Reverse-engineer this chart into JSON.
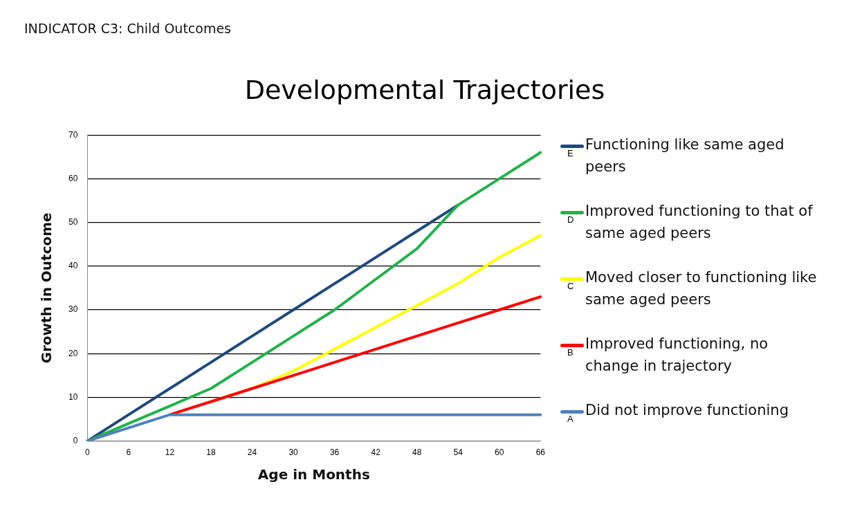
{
  "chart_data": {
    "type": "line",
    "title": "Developmental Trajectories",
    "subtitle": "INDICATOR C3: Child Outcomes",
    "xlabel": "Age in Months",
    "ylabel": "Growth in Outcome",
    "categories": [
      "0",
      "6",
      "12",
      "18",
      "24",
      "30",
      "36",
      "42",
      "48",
      "54",
      "60",
      "66"
    ],
    "series": [
      {
        "name": "Functioning like same aged peers",
        "color": "#1f497d",
        "values": [
          0,
          6,
          12,
          18,
          24,
          30,
          36,
          42,
          48,
          54,
          null,
          null
        ]
      },
      {
        "name": "Improved functioning to that of same aged peers",
        "color": "#22b14c",
        "values": [
          0,
          4,
          8,
          12,
          18,
          24,
          30,
          37,
          44,
          54,
          60,
          66
        ]
      },
      {
        "name": "Moved closer to functioning like same aged peers",
        "color": "#ffff00",
        "values": [
          null,
          null,
          null,
          9,
          12,
          16,
          21,
          26,
          31,
          36,
          42,
          47
        ]
      },
      {
        "name": "Improved functioning, no change in trajectory",
        "color": "#ff0000",
        "values": [
          null,
          null,
          6,
          9,
          12,
          15,
          18,
          21,
          24,
          27,
          30,
          33
        ]
      },
      {
        "name": "Did not improve functioning",
        "color": "#4f81bd",
        "values": [
          0,
          3,
          6,
          6,
          6,
          6,
          6,
          6,
          6,
          6,
          6,
          6
        ]
      }
    ],
    "annotations": [
      "E",
      "D",
      "C",
      "B",
      "A"
    ],
    "ylim": [
      0,
      70
    ],
    "yticks": [
      0,
      10,
      20,
      30,
      40,
      50,
      60,
      70
    ],
    "grid": "y",
    "legend": "right",
    "marker": "none",
    "line_style": "solid"
  }
}
